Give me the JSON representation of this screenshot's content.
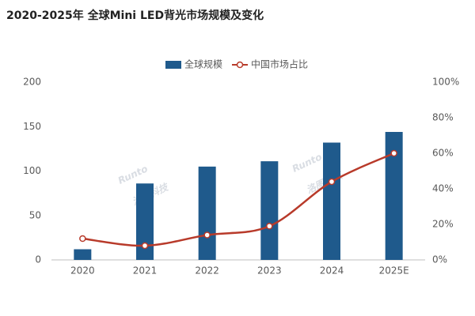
{
  "chart_data": {
    "type": "bar-line",
    "title": "2020-2025年 全球Mini LED背光市场规模及变化",
    "categories": [
      "2020",
      "2021",
      "2022",
      "2023",
      "2024",
      "2025E"
    ],
    "series": [
      {
        "name": "全球规模",
        "type": "bar",
        "color": "#1f5a8c",
        "values": [
          12,
          86,
          105,
          111,
          132,
          144
        ]
      },
      {
        "name": "中国市场占比",
        "type": "line",
        "color": "#b83a2a",
        "axis": "y2",
        "values": [
          12,
          8,
          14,
          19,
          44,
          60
        ]
      }
    ],
    "ylim": [
      0,
      200
    ],
    "yticks": [
      0,
      50,
      100,
      150,
      200
    ],
    "y2lim": [
      0,
      100
    ],
    "y2ticks": [
      {
        "value": 0,
        "label": "0%"
      },
      {
        "value": 20,
        "label": "20%"
      },
      {
        "value": 40,
        "label": "40%"
      },
      {
        "value": 60,
        "label": "60%"
      },
      {
        "value": 80,
        "label": "80%"
      },
      {
        "value": 100,
        "label": "100%"
      }
    ],
    "grid": false,
    "legend": "top",
    "watermark": [
      "Runto",
      "洛图科技"
    ]
  }
}
